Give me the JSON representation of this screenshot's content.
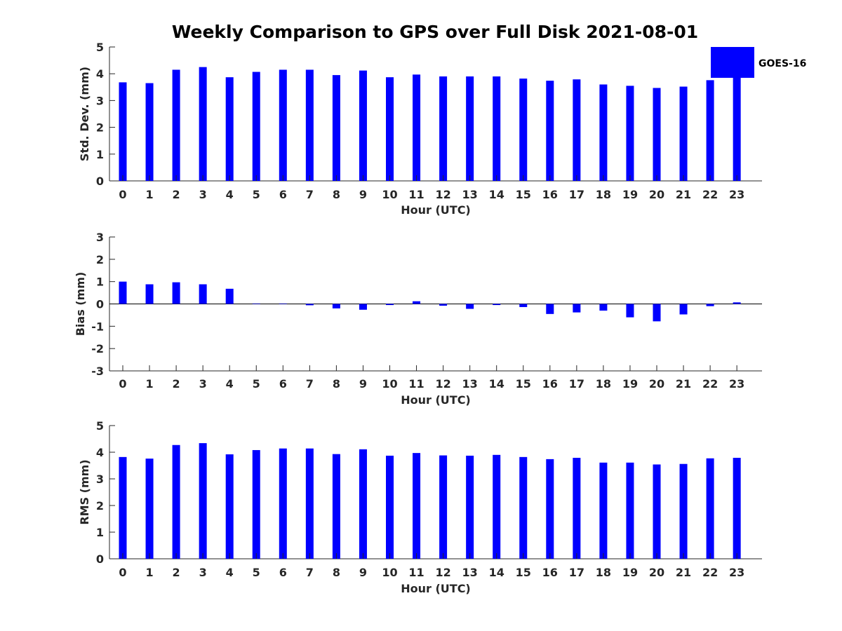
{
  "title": "Weekly Comparison to GPS over Full Disk 2021-08-01",
  "colors": {
    "bar": "#0000ff",
    "axis": "#262626"
  },
  "chart_data": [
    {
      "type": "bar",
      "title": "Weekly Comparison to GPS over Full Disk 2021-08-01",
      "xlabel": "Hour (UTC)",
      "ylabel": "Std. Dev. (mm)",
      "ylim": [
        0,
        5
      ],
      "yticks": [
        0,
        1,
        2,
        3,
        4,
        5
      ],
      "categories": [
        "0",
        "1",
        "2",
        "3",
        "4",
        "5",
        "6",
        "7",
        "8",
        "9",
        "10",
        "11",
        "12",
        "13",
        "14",
        "15",
        "16",
        "17",
        "18",
        "19",
        "20",
        "21",
        "22",
        "23"
      ],
      "series": [
        {
          "name": "GOES-16",
          "values": [
            3.68,
            3.65,
            4.15,
            4.25,
            3.87,
            4.07,
            4.15,
            4.15,
            3.95,
            4.12,
            3.87,
            3.97,
            3.9,
            3.9,
            3.9,
            3.82,
            3.74,
            3.79,
            3.6,
            3.55,
            3.47,
            3.52,
            3.76,
            3.86
          ]
        }
      ],
      "legend": {
        "entries": [
          "GOES-16"
        ],
        "placement": "top-right"
      }
    },
    {
      "type": "bar",
      "xlabel": "Hour (UTC)",
      "ylabel": "Bias (mm)",
      "ylim": [
        -3,
        3
      ],
      "yticks": [
        -3,
        -2,
        -1,
        0,
        1,
        2,
        3
      ],
      "categories": [
        "0",
        "1",
        "2",
        "3",
        "4",
        "5",
        "6",
        "7",
        "8",
        "9",
        "10",
        "11",
        "12",
        "13",
        "14",
        "15",
        "16",
        "17",
        "18",
        "19",
        "20",
        "21",
        "22",
        "23"
      ],
      "series": [
        {
          "name": "GOES-16",
          "values": [
            1.0,
            0.88,
            0.97,
            0.88,
            0.68,
            0.02,
            0.02,
            -0.06,
            -0.2,
            -0.26,
            -0.05,
            0.12,
            -0.08,
            -0.22,
            -0.05,
            -0.14,
            -0.45,
            -0.38,
            -0.3,
            -0.6,
            -0.78,
            -0.47,
            -0.1,
            0.07
          ]
        }
      ]
    },
    {
      "type": "bar",
      "xlabel": "Hour (UTC)",
      "ylabel": "RMS (mm)",
      "ylim": [
        0,
        5
      ],
      "yticks": [
        0,
        1,
        2,
        3,
        4,
        5
      ],
      "categories": [
        "0",
        "1",
        "2",
        "3",
        "4",
        "5",
        "6",
        "7",
        "8",
        "9",
        "10",
        "11",
        "12",
        "13",
        "14",
        "15",
        "16",
        "17",
        "18",
        "19",
        "20",
        "21",
        "22",
        "23"
      ],
      "series": [
        {
          "name": "GOES-16",
          "values": [
            3.82,
            3.76,
            4.27,
            4.34,
            3.92,
            4.08,
            4.14,
            4.14,
            3.93,
            4.11,
            3.87,
            3.97,
            3.88,
            3.87,
            3.9,
            3.82,
            3.74,
            3.79,
            3.61,
            3.61,
            3.54,
            3.56,
            3.77,
            3.79
          ]
        }
      ]
    }
  ]
}
